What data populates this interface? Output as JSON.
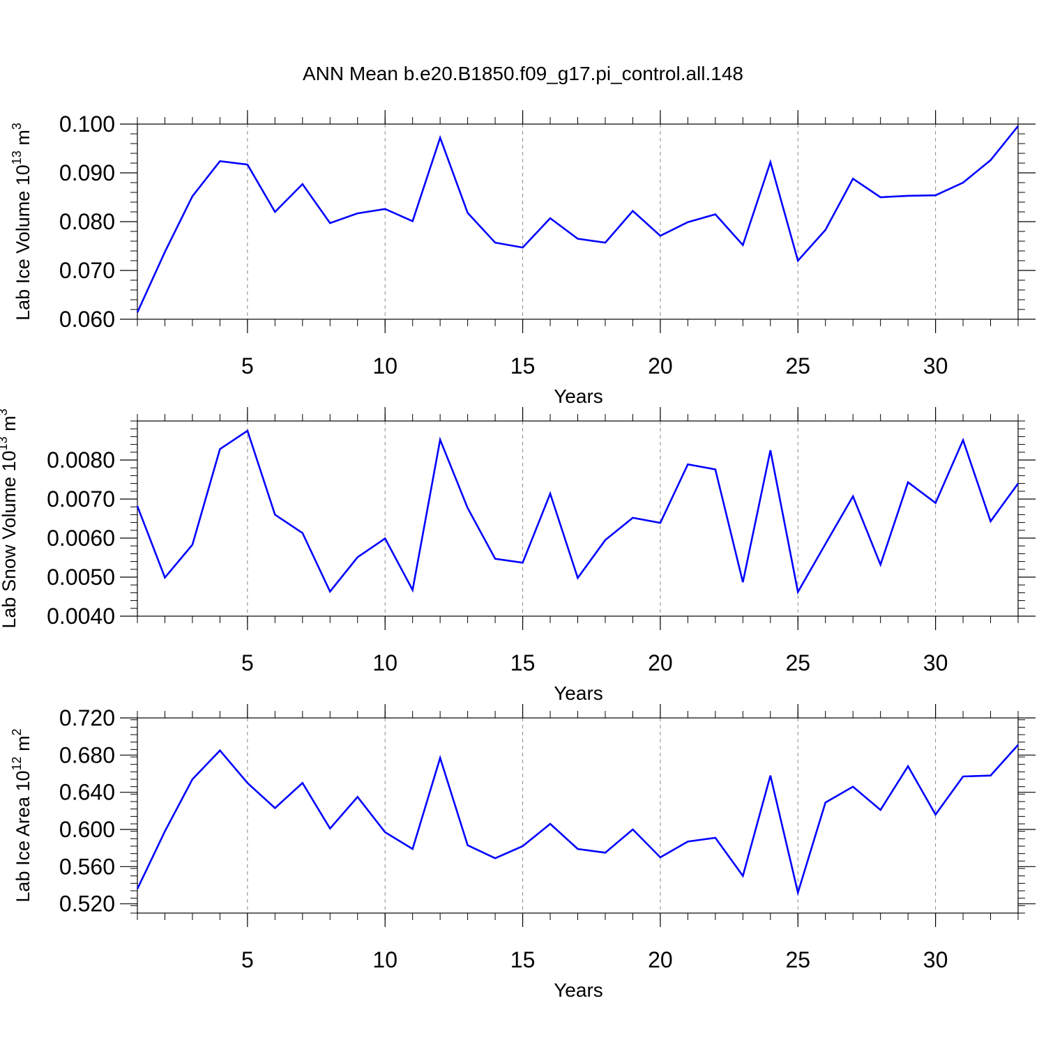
{
  "figure": {
    "title": "ANN Mean b.e20.B1850.f09_g17.pi_control.all.148",
    "line_color": "#0000ff",
    "grid_color": "#888888"
  },
  "chart_data": [
    {
      "type": "line",
      "title": "ANN Mean b.e20.B1850.f09_g17.pi_control.all.148",
      "xlabel": "Years",
      "ylabel": {
        "pre": "Lab Ice Volume 10",
        "exp": "13",
        "mid": " m",
        "unit_exp": "3"
      },
      "xlim": [
        1,
        33
      ],
      "ylim": [
        0.06,
        0.1
      ],
      "xticks": [
        5,
        10,
        15,
        20,
        25,
        30
      ],
      "xtick_labels": [
        "5",
        "10",
        "15",
        "20",
        "25",
        "30"
      ],
      "yticks": [
        0.06,
        0.07,
        0.08,
        0.09,
        0.1
      ],
      "ytick_labels": [
        "0.060",
        "0.070",
        "0.080",
        "0.090",
        "0.100"
      ],
      "grid_x": true,
      "x": [
        1,
        2,
        3,
        4,
        5,
        6,
        7,
        8,
        9,
        10,
        11,
        12,
        13,
        14,
        15,
        16,
        17,
        18,
        19,
        20,
        21,
        22,
        23,
        24,
        25,
        26,
        27,
        28,
        29,
        30,
        31,
        32,
        33
      ],
      "series": [
        {
          "name": "Lab Ice Volume",
          "values": [
            0.0614,
            0.0738,
            0.0852,
            0.0924,
            0.0917,
            0.082,
            0.0877,
            0.0797,
            0.0817,
            0.0826,
            0.0801,
            0.0972,
            0.0818,
            0.0757,
            0.0747,
            0.0807,
            0.0765,
            0.0757,
            0.0822,
            0.0771,
            0.0799,
            0.0815,
            0.0752,
            0.0922,
            0.072,
            0.0783,
            0.0888,
            0.085,
            0.0853,
            0.0854,
            0.088,
            0.0926,
            0.0996
          ]
        }
      ]
    },
    {
      "type": "line",
      "xlabel": "Years",
      "ylabel": {
        "pre": "Lab Snow Volume 10",
        "exp": "13",
        "mid": " m",
        "unit_exp": "3"
      },
      "xlim": [
        1,
        33
      ],
      "ylim": [
        0.004,
        0.009
      ],
      "xticks": [
        5,
        10,
        15,
        20,
        25,
        30
      ],
      "xtick_labels": [
        "5",
        "10",
        "15",
        "20",
        "25",
        "30"
      ],
      "yticks": [
        0.004,
        0.005,
        0.006,
        0.007,
        0.008
      ],
      "ytick_labels": [
        "0.0040",
        "0.0050",
        "0.0060",
        "0.0070",
        "0.0080"
      ],
      "grid_x": true,
      "x": [
        1,
        2,
        3,
        4,
        5,
        6,
        7,
        8,
        9,
        10,
        11,
        12,
        13,
        14,
        15,
        16,
        17,
        18,
        19,
        20,
        21,
        22,
        23,
        24,
        25,
        26,
        27,
        28,
        29,
        30,
        31,
        32,
        33
      ],
      "series": [
        {
          "name": "Lab Snow Volume",
          "values": [
            0.00682,
            0.00499,
            0.00583,
            0.00828,
            0.00875,
            0.0066,
            0.00613,
            0.00463,
            0.00551,
            0.00599,
            0.00467,
            0.00852,
            0.00677,
            0.00547,
            0.00537,
            0.00714,
            0.00498,
            0.00595,
            0.00652,
            0.00639,
            0.00789,
            0.00776,
            0.00487,
            0.00825,
            0.00462,
            0.00585,
            0.00707,
            0.00532,
            0.00743,
            0.0069,
            0.00851,
            0.00643,
            0.0074
          ]
        }
      ]
    },
    {
      "type": "line",
      "xlabel": "Years",
      "ylabel": {
        "pre": "Lab Ice Area 10",
        "exp": "12",
        "mid": " m",
        "unit_exp": "2"
      },
      "xlim": [
        1,
        33
      ],
      "ylim": [
        0.51,
        0.72
      ],
      "xticks": [
        5,
        10,
        15,
        20,
        25,
        30
      ],
      "xtick_labels": [
        "5",
        "10",
        "15",
        "20",
        "25",
        "30"
      ],
      "yticks": [
        0.52,
        0.56,
        0.6,
        0.64,
        0.68,
        0.72
      ],
      "ytick_labels": [
        "0.520",
        "0.560",
        "0.600",
        "0.640",
        "0.680",
        "0.720"
      ],
      "grid_x": true,
      "x": [
        1,
        2,
        3,
        4,
        5,
        6,
        7,
        8,
        9,
        10,
        11,
        12,
        13,
        14,
        15,
        16,
        17,
        18,
        19,
        20,
        21,
        22,
        23,
        24,
        25,
        26,
        27,
        28,
        29,
        30,
        31,
        32,
        33
      ],
      "series": [
        {
          "name": "Lab Ice Area",
          "values": [
            0.536,
            0.598,
            0.654,
            0.685,
            0.65,
            0.623,
            0.65,
            0.601,
            0.635,
            0.597,
            0.579,
            0.677,
            0.583,
            0.569,
            0.582,
            0.606,
            0.579,
            0.575,
            0.6,
            0.57,
            0.587,
            0.591,
            0.55,
            0.658,
            0.532,
            0.629,
            0.646,
            0.621,
            0.668,
            0.616,
            0.657,
            0.658,
            0.691
          ]
        }
      ]
    }
  ]
}
